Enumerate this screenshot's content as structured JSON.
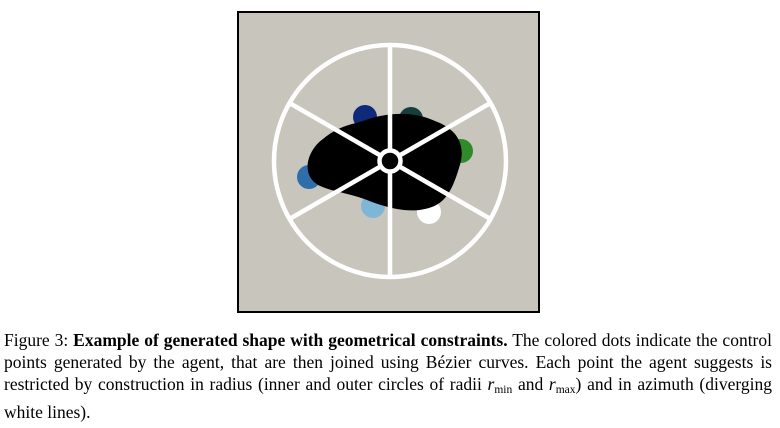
{
  "figure": {
    "panel_background": "#c8c5bd",
    "constraint_line_color": "#ffffff",
    "shape_color": "#000000",
    "control_points": [
      {
        "color": "#0e2a78"
      },
      {
        "color": "#173d3d"
      },
      {
        "color": "#2f8a2a"
      },
      {
        "color": "#ffffff"
      },
      {
        "color": "#7fb6d8"
      },
      {
        "color": "#2f6ea8"
      }
    ]
  },
  "caption": {
    "label": "Figure 3:",
    "title": "Example of generated shape with geometrical constraints.",
    "text_part1": "The colored dots indicate the control points generated by the agent, that are then joined using Bézier curves. Each point the agent suggests is restricted by construction in radius (inner and outer circles of radii",
    "r_symbol": "r",
    "sub_min": "min",
    "and_word": "and",
    "sub_max": "max",
    "text_part2": ") and in azimuth (diverging white lines)."
  }
}
